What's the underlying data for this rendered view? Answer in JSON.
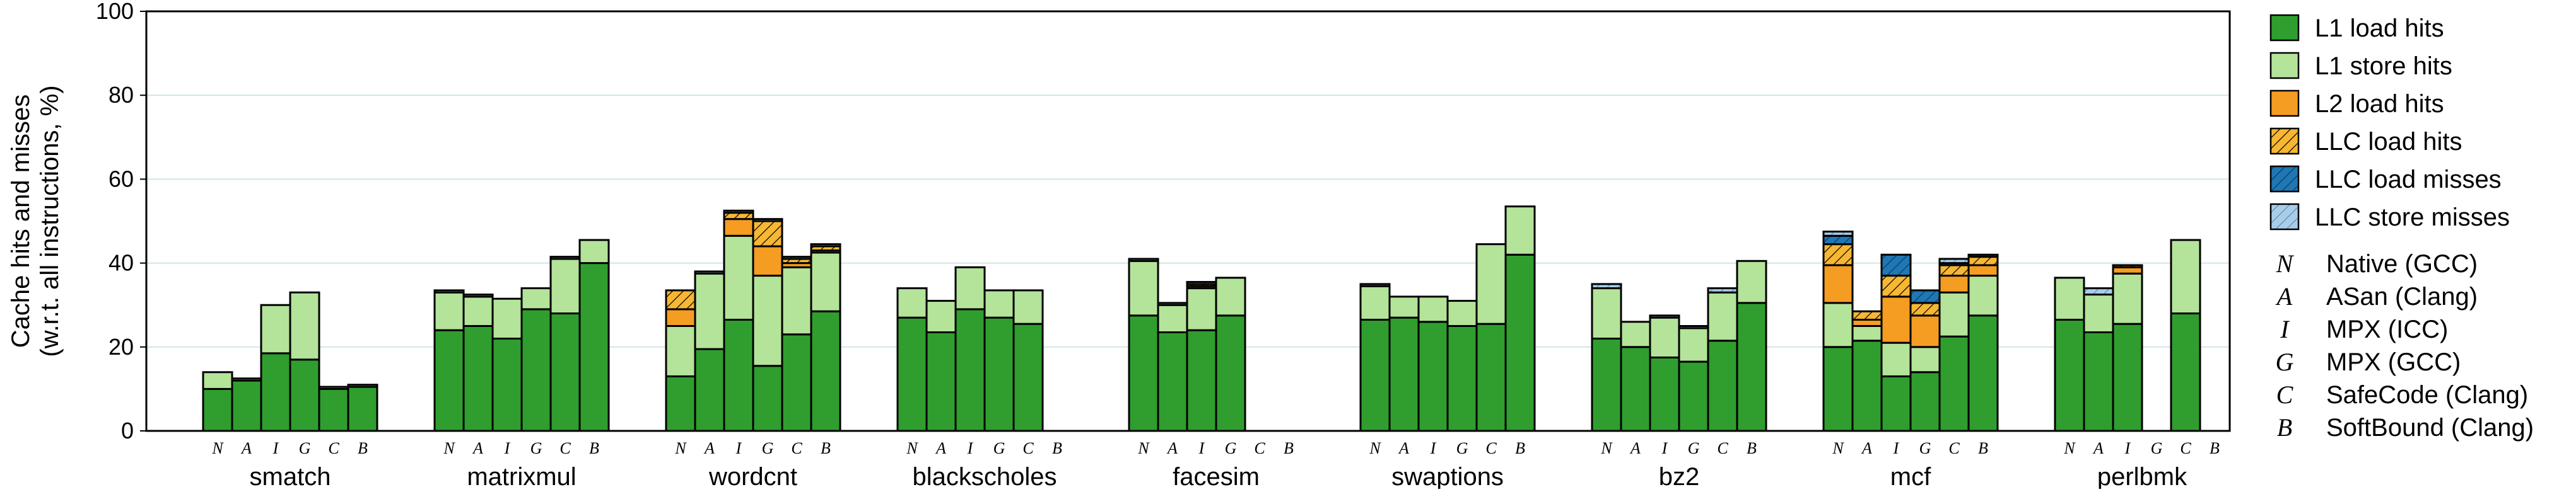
{
  "chart_data": {
    "type": "bar",
    "stacked": true,
    "ylabel": [
      "Cache hits and misses",
      "(w.r.t. all instructions, %)"
    ],
    "ylim": [
      0,
      100
    ],
    "yticks": [
      "0",
      "20",
      "40",
      "60",
      "80",
      "100"
    ],
    "grid": "horizontal",
    "legend_placement": "right",
    "categories": [
      "smatch",
      "matrixmul",
      "wordcnt",
      "blackscholes",
      "facesim",
      "swaptions",
      "bz2",
      "mcf",
      "perlbmk"
    ],
    "variant_keys": [
      "N",
      "A",
      "I",
      "G",
      "C",
      "B"
    ],
    "variants": [
      {
        "key": "N",
        "name": "Native (GCC)"
      },
      {
        "key": "A",
        "name": "ASan (Clang)"
      },
      {
        "key": "I",
        "name": "MPX (ICC)"
      },
      {
        "key": "G",
        "name": "MPX (GCC)"
      },
      {
        "key": "C",
        "name": "SafeCode (Clang)"
      },
      {
        "key": "B",
        "name": "SoftBound (Clang)"
      }
    ],
    "series": [
      {
        "name": "L1 load hits",
        "color": "#2f9e2f",
        "pattern": "solid"
      },
      {
        "name": "L1 store hits",
        "color": "#b4e39a",
        "pattern": "solid"
      },
      {
        "name": "L2 load hits",
        "color": "#f59c22",
        "pattern": "solid"
      },
      {
        "name": "LLC load hits",
        "color": "#f7b733",
        "pattern": "hatch"
      },
      {
        "name": "LLC load misses",
        "color": "#1f77b4",
        "pattern": "hatch"
      },
      {
        "name": "LLC store misses",
        "color": "#a9cde8",
        "pattern": "hatch"
      }
    ],
    "values": {
      "smatch": [
        [
          10,
          4,
          0,
          0,
          0,
          0
        ],
        [
          12,
          0.5,
          0,
          0,
          0,
          0
        ],
        [
          18.5,
          11.5,
          0,
          0,
          0,
          0
        ],
        [
          17,
          16,
          0,
          0,
          0,
          0
        ],
        [
          10,
          0.5,
          0,
          0,
          0,
          0
        ],
        [
          10.5,
          0.5,
          0,
          0,
          0,
          0
        ]
      ],
      "matrixmul": [
        [
          24,
          9,
          0,
          0,
          0,
          0.5
        ],
        [
          25,
          7,
          0,
          0,
          0,
          0.5
        ],
        [
          22,
          9.5,
          0,
          0,
          0,
          0
        ],
        [
          29,
          5,
          0,
          0,
          0,
          0
        ],
        [
          28,
          13,
          0,
          0,
          0,
          0.5
        ],
        [
          40,
          5.5,
          0,
          0,
          0,
          0
        ]
      ],
      "wordcnt": [
        [
          13,
          12,
          4,
          4.5,
          0,
          0
        ],
        [
          19.5,
          18,
          0,
          0,
          0,
          0.5
        ],
        [
          26.5,
          20,
          4,
          1.5,
          0,
          0.5
        ],
        [
          15.5,
          21.5,
          7,
          6,
          0,
          0.5
        ],
        [
          23,
          16,
          1,
          1,
          0,
          0.5
        ],
        [
          28.5,
          14,
          0.5,
          1,
          0,
          0.5
        ]
      ],
      "blackscholes": [
        [
          27,
          7,
          0,
          0,
          0,
          0
        ],
        [
          23.5,
          7.5,
          0,
          0,
          0,
          0
        ],
        [
          29,
          10,
          0,
          0,
          0,
          0
        ],
        [
          27,
          6.5,
          0,
          0,
          0,
          0
        ],
        [
          25.5,
          8,
          0,
          0,
          0,
          0
        ],
        [
          0,
          0,
          0,
          0,
          0,
          0
        ]
      ],
      "facesim": [
        [
          27.5,
          13,
          0,
          0,
          0,
          0.5
        ],
        [
          23.5,
          6.5,
          0,
          0,
          0,
          0.5
        ],
        [
          24,
          10,
          0.5,
          0.5,
          0,
          0.5
        ],
        [
          27.5,
          9,
          0,
          0,
          0,
          0
        ],
        [
          0,
          0,
          0,
          0,
          0,
          0
        ],
        [
          0,
          0,
          0,
          0,
          0,
          0
        ]
      ],
      "swaptions": [
        [
          26.5,
          8,
          0,
          0,
          0,
          0.5
        ],
        [
          27,
          5,
          0,
          0,
          0,
          0
        ],
        [
          26,
          6,
          0,
          0,
          0,
          0
        ],
        [
          25,
          6,
          0,
          0,
          0,
          0
        ],
        [
          25.5,
          19,
          0,
          0,
          0,
          0
        ],
        [
          42,
          11.5,
          0,
          0,
          0,
          0
        ]
      ],
      "bz2": [
        [
          22,
          12,
          0,
          0,
          0,
          1
        ],
        [
          20,
          6,
          0,
          0,
          0,
          0
        ],
        [
          17.5,
          9.5,
          0,
          0,
          0,
          0.5
        ],
        [
          16.5,
          8,
          0,
          0,
          0,
          0.5
        ],
        [
          21.5,
          11.5,
          0,
          0,
          0,
          1
        ],
        [
          30.5,
          10,
          0,
          0,
          0,
          0
        ]
      ],
      "mcf": [
        [
          20,
          10.5,
          9,
          5,
          2,
          1
        ],
        [
          21.5,
          3.5,
          1.5,
          2,
          0,
          0
        ],
        [
          13,
          8,
          11,
          5,
          5,
          0
        ],
        [
          14,
          6,
          7.5,
          3,
          3,
          0
        ],
        [
          22.5,
          10.5,
          4,
          2.5,
          0.5,
          1
        ],
        [
          27.5,
          9.5,
          2.5,
          2,
          0.5,
          0
        ]
      ],
      "perlbmk": [
        [
          26.5,
          10,
          0,
          0,
          0,
          0
        ],
        [
          23.5,
          9,
          0,
          0,
          0,
          1.5
        ],
        [
          25.5,
          12,
          1.5,
          0.5,
          0,
          0
        ],
        [
          0,
          0,
          0,
          0,
          0,
          0
        ],
        [
          28,
          17.5,
          0,
          0,
          0,
          0
        ],
        [
          0,
          0,
          0,
          0,
          0,
          0
        ]
      ]
    }
  }
}
